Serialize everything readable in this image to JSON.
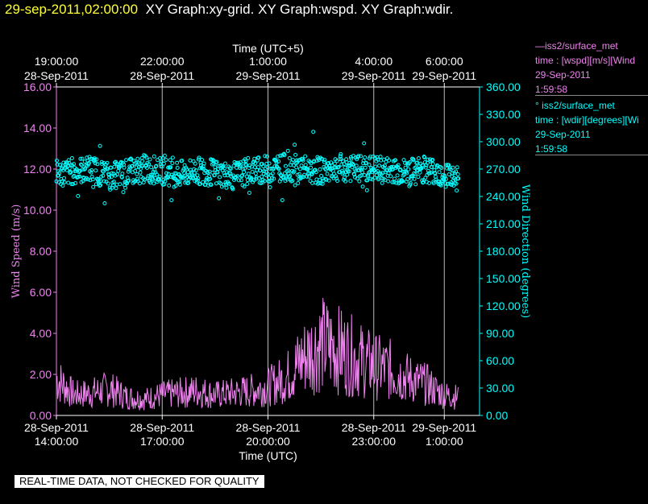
{
  "header": {
    "timestamp": "29-sep-2011,02:00:00",
    "graphs": "XY Graph:xy-grid.  XY Graph:wspd.  XY Graph:wdir."
  },
  "legend": {
    "entries": [
      {
        "line1": "—iss2/surface_met",
        "line2": "time : [wspd][m/s][Wind",
        "line3": "29-Sep-2011",
        "line4": "1:59:58",
        "color": "#ee82ee"
      },
      {
        "line1": "° iss2/surface_met",
        "line2": "time : [wdir][degrees][Wi",
        "line3": "29-Sep-2011",
        "line4": "1:59:58",
        "color": "#00ffff"
      }
    ]
  },
  "watermark": "REAL-TIME DATA, NOT CHECKED FOR QUALITY",
  "chart_data": {
    "type": "line",
    "x_bottom_label": "Time (UTC)",
    "x_top_label": "Time (UTC+5)",
    "x_range": [
      "28-Sep-2011 14:00",
      "29-Sep-2011 02:00"
    ],
    "bottom_ticks": [
      {
        "date": "28-Sep-2011",
        "time": "14:00:00"
      },
      {
        "date": "28-Sep-2011",
        "time": "17:00:00"
      },
      {
        "date": "28-Sep-2011",
        "time": "20:00:00"
      },
      {
        "date": "28-Sep-2011",
        "time": "23:00:00"
      },
      {
        "date": "29-Sep-2011",
        "time": "1:00:00"
      }
    ],
    "top_ticks": [
      {
        "time": "19:00:00",
        "date": "28-Sep-2011"
      },
      {
        "time": "22:00:00",
        "date": "28-Sep-2011"
      },
      {
        "time": "1:00:00",
        "date": "29-Sep-2011"
      },
      {
        "time": "4:00:00",
        "date": "29-Sep-2011"
      },
      {
        "time": "6:00:00",
        "date": "29-Sep-2011"
      }
    ],
    "y_left": {
      "label": "Wind Speed (m/s)",
      "range": [
        0,
        16
      ],
      "ticks": [
        "0.00",
        "2.00",
        "4.00",
        "6.00",
        "8.00",
        "10.00",
        "12.00",
        "14.00",
        "16.00"
      ]
    },
    "y_right": {
      "label": "Wind Direction (degrees)",
      "range": [
        0,
        360
      ],
      "ticks": [
        "0.00",
        "30.00",
        "60.00",
        "90.00",
        "120.00",
        "150.00",
        "180.00",
        "210.00",
        "240.00",
        "270.00",
        "300.00",
        "330.00",
        "360.00"
      ]
    },
    "grid": "vertical lines at labeled times",
    "series": [
      {
        "name": "iss2/surface_met wspd",
        "axis": "left",
        "style": "line",
        "color": "#ee82ee",
        "x_hours": [
          0,
          0.5,
          1,
          1.5,
          2,
          2.5,
          3,
          3.5,
          4,
          4.5,
          5,
          5.5,
          6,
          6.5,
          7,
          7.5,
          8,
          8.5,
          9,
          9.5,
          10,
          10.5,
          11,
          11.4
        ],
        "y": [
          1.8,
          1.0,
          1.1,
          1.3,
          0.9,
          0.8,
          1.0,
          1.1,
          1.2,
          1.0,
          1.1,
          1.2,
          1.4,
          1.8,
          2.8,
          3.5,
          3.2,
          2.8,
          2.4,
          2.2,
          1.8,
          1.5,
          1.0,
          0.9
        ]
      },
      {
        "name": "iss2/surface_met wdir",
        "axis": "right",
        "style": "scatter",
        "color": "#00ffff",
        "x_hours": [
          0,
          0.5,
          1,
          1.5,
          2,
          2.5,
          3,
          3.5,
          4,
          4.5,
          5,
          5.5,
          6,
          6.5,
          7,
          7.5,
          8,
          8.5,
          9,
          9.5,
          10,
          10.5,
          11,
          11.4
        ],
        "y": [
          265,
          268,
          270,
          262,
          266,
          270,
          268,
          264,
          268,
          266,
          262,
          268,
          270,
          272,
          270,
          268,
          272,
          270,
          270,
          268,
          266,
          270,
          265,
          260
        ]
      }
    ]
  }
}
